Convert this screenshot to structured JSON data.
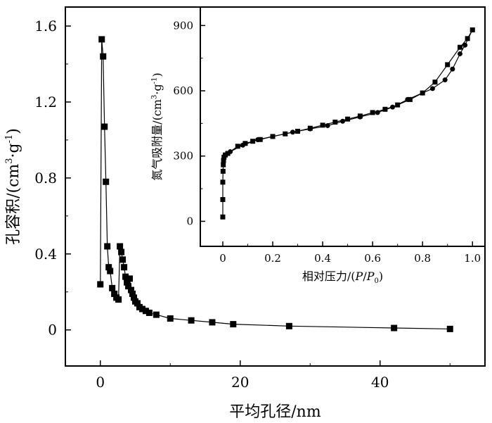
{
  "chart_data": [
    {
      "type": "scatter",
      "title": "",
      "xlabel": "平均孔径/nm",
      "ylabel": "孔容积/(cm³·g⁻¹)",
      "xlim": [
        -5,
        55
      ],
      "ylim": [
        -0.19,
        1.7
      ],
      "xticks": [
        0,
        20,
        40
      ],
      "yticks": [
        0,
        0.4,
        0.8,
        1.2,
        1.6
      ],
      "xtick_labels": [
        "0",
        "20",
        "40"
      ],
      "ytick_labels": [
        "0",
        "0.4",
        "0.8",
        "1.2",
        "1.6"
      ],
      "grid": false,
      "series": [
        {
          "marker": "square",
          "line": true,
          "x": [
            0.0,
            0.2,
            0.4,
            0.6,
            0.8,
            1.0,
            1.2,
            1.4,
            1.7,
            2.0,
            2.3,
            2.6,
            2.8,
            3.0,
            3.2,
            3.4,
            3.6,
            3.8,
            4.0,
            4.2,
            4.4,
            4.6,
            4.8,
            5.0,
            5.3,
            5.6,
            6.0,
            6.5,
            7.0,
            8.0,
            10.0,
            13.0,
            16.0,
            19.0,
            27.0,
            42.0,
            50.0
          ],
          "y": [
            0.24,
            1.53,
            1.44,
            1.07,
            0.78,
            0.44,
            0.33,
            0.31,
            0.22,
            0.19,
            0.17,
            0.16,
            0.44,
            0.41,
            0.37,
            0.33,
            0.28,
            0.25,
            0.23,
            0.27,
            0.21,
            0.19,
            0.17,
            0.15,
            0.14,
            0.12,
            0.11,
            0.1,
            0.09,
            0.08,
            0.06,
            0.05,
            0.04,
            0.03,
            0.02,
            0.01,
            0.005
          ]
        }
      ]
    },
    {
      "type": "line",
      "title": "",
      "xlabel": "相对压力/(P/P0)",
      "ylabel": "氮气吸附量/(cm³·g⁻¹)",
      "xlim": [
        -0.09,
        1.05
      ],
      "ylim": [
        -115,
        985
      ],
      "xticks": [
        0,
        0.2,
        0.4,
        0.6,
        0.8,
        1.0
      ],
      "yticks": [
        0,
        300,
        600,
        900
      ],
      "xtick_labels": [
        "0",
        "0.2",
        "0.4",
        "0.6",
        "0.8",
        "1.0"
      ],
      "ytick_labels": [
        "0",
        "300",
        "600",
        "900"
      ],
      "grid": false,
      "series": [
        {
          "marker": "square",
          "x": [
            0.0,
            0.0,
            0.0,
            0.001,
            0.002,
            0.003,
            0.005,
            0.01,
            0.02,
            0.06,
            0.09,
            0.12,
            0.15,
            0.2,
            0.25,
            0.3,
            0.35,
            0.4,
            0.45,
            0.5,
            0.55,
            0.6,
            0.65,
            0.7,
            0.75,
            0.8,
            0.85,
            0.9,
            0.95,
            0.98,
            1.0
          ],
          "y": [
            20,
            100,
            180,
            230,
            260,
            280,
            295,
            305,
            312,
            345,
            358,
            368,
            376,
            390,
            402,
            414,
            428,
            442,
            456,
            470,
            484,
            500,
            515,
            535,
            560,
            590,
            640,
            720,
            800,
            840,
            880
          ]
        },
        {
          "marker": "circle",
          "x": [
            1.0,
            0.97,
            0.95,
            0.92,
            0.89,
            0.84,
            0.8,
            0.74,
            0.68,
            0.62,
            0.55,
            0.48,
            0.42,
            0.35,
            0.28,
            0.2,
            0.14,
            0.08,
            0.03,
            0.01
          ],
          "y": [
            880,
            810,
            770,
            700,
            650,
            610,
            590,
            560,
            525,
            500,
            480,
            460,
            440,
            425,
            410,
            390,
            375,
            350,
            320,
            305
          ]
        }
      ]
    }
  ]
}
